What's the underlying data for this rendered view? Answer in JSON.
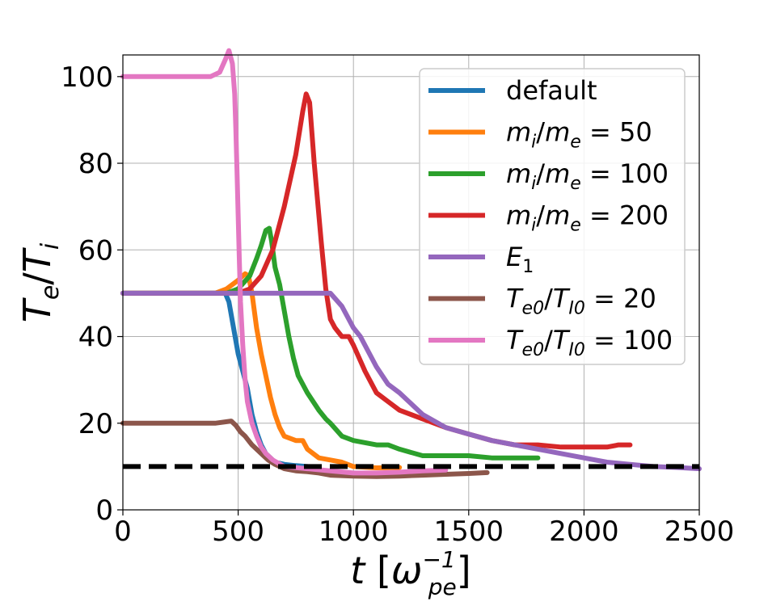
{
  "chart_data": {
    "type": "line",
    "title": "",
    "xlabel": "t   [ω_pe^-1]",
    "ylabel": "T_e/T_i",
    "xlim": [
      0,
      2500
    ],
    "ylim": [
      0,
      105
    ],
    "xticks": [
      0,
      500,
      1000,
      1500,
      2000,
      2500
    ],
    "yticks": [
      0,
      20,
      40,
      60,
      80,
      100
    ],
    "grid": true,
    "legend_position": "top-right",
    "reference_line": {
      "y": 10,
      "style": "dashed",
      "color": "#000000"
    },
    "series": [
      {
        "name": "default",
        "color": "#1f77b4",
        "x": [
          0,
          400,
          440,
          460,
          480,
          500,
          520,
          540,
          560,
          580,
          600,
          620,
          640,
          660,
          700,
          750,
          800
        ],
        "y": [
          50,
          50,
          50.5,
          48,
          42,
          36,
          32,
          28,
          22,
          18,
          15,
          13,
          12,
          11,
          10.5,
          10.2,
          10
        ]
      },
      {
        "name": "m_i/m_e = 50",
        "color": "#ff7f0e",
        "x": [
          0,
          400,
          450,
          500,
          530,
          545,
          560,
          580,
          600,
          620,
          640,
          660,
          680,
          700,
          750,
          780,
          800,
          850,
          900,
          950,
          1000,
          1100,
          1200
        ],
        "y": [
          50,
          50,
          51,
          53,
          54.5,
          54,
          50,
          42,
          36,
          31,
          26,
          22,
          19,
          17,
          16,
          16,
          14,
          12,
          11.5,
          11,
          10,
          9.7,
          9.8
        ]
      },
      {
        "name": "m_i/m_e = 100",
        "color": "#2ca02c",
        "x": [
          0,
          450,
          500,
          550,
          580,
          600,
          620,
          635,
          645,
          660,
          680,
          700,
          720,
          740,
          760,
          800,
          850,
          880,
          900,
          950,
          1000,
          1100,
          1150,
          1200,
          1300,
          1400,
          1500,
          1600,
          1700,
          1800
        ],
        "y": [
          50,
          50,
          51,
          54,
          58,
          61,
          64.5,
          65,
          62,
          56,
          52,
          46,
          40,
          35,
          31,
          27,
          23,
          21,
          20,
          17,
          16,
          15,
          15,
          14,
          12.5,
          12.5,
          12.5,
          12,
          12,
          12
        ]
      },
      {
        "name": "m_i/m_e = 200",
        "color": "#d62728",
        "x": [
          0,
          500,
          550,
          600,
          650,
          700,
          750,
          780,
          795,
          810,
          830,
          860,
          880,
          900,
          920,
          950,
          980,
          1000,
          1050,
          1100,
          1150,
          1200,
          1300,
          1400,
          1500,
          1600,
          1700,
          1800,
          1900,
          2000,
          2100,
          2150,
          2200
        ],
        "y": [
          50,
          50,
          51,
          54,
          60,
          70,
          82,
          92,
          96,
          94,
          80,
          62,
          51,
          44,
          42,
          40,
          40,
          38,
          32,
          27,
          25,
          23,
          21,
          19,
          17.5,
          16,
          15,
          15,
          14.5,
          14.5,
          14.5,
          15,
          15
        ]
      },
      {
        "name": "E_1",
        "color": "#9467bd",
        "x": [
          0,
          900,
          950,
          1000,
          1030,
          1060,
          1100,
          1150,
          1200,
          1300,
          1400,
          1500,
          1600,
          1700,
          1800,
          1900,
          2000,
          2100,
          2200,
          2300,
          2400,
          2500
        ],
        "y": [
          50,
          50,
          47,
          42,
          40,
          37,
          33,
          29,
          27,
          22,
          19,
          17.5,
          16,
          15,
          14,
          13,
          12,
          11,
          10.5,
          10,
          9.8,
          9.5
        ]
      },
      {
        "name": "T_e0/T_I0 = 20",
        "color": "#8c564b",
        "x": [
          0,
          400,
          470,
          490,
          510,
          530,
          560,
          600,
          630,
          660,
          700,
          750,
          800,
          850,
          900,
          1000,
          1100,
          1200,
          1300,
          1400,
          1500,
          1580
        ],
        "y": [
          20,
          20,
          20.5,
          19.5,
          18,
          17,
          15,
          13,
          11.5,
          10.5,
          9.5,
          9,
          8.8,
          8.5,
          8,
          7.8,
          7.7,
          7.8,
          8,
          8.2,
          8.4,
          8.6
        ]
      },
      {
        "name": "T_e0/T_I0 = 100",
        "color": "#e377c2",
        "x": [
          0,
          380,
          420,
          445,
          460,
          475,
          485,
          490,
          495,
          500,
          505,
          510,
          520,
          530,
          540,
          560,
          580,
          600,
          620,
          650,
          700,
          800,
          900,
          1000,
          1100,
          1200,
          1300,
          1400
        ],
        "y": [
          100,
          100,
          101,
          104,
          106,
          103,
          96,
          88,
          78,
          68,
          58,
          48,
          38,
          30,
          25,
          20,
          17,
          14.5,
          13,
          11.5,
          10,
          9.5,
          9,
          8.5,
          8.5,
          8.7,
          9,
          9.2
        ]
      }
    ]
  }
}
